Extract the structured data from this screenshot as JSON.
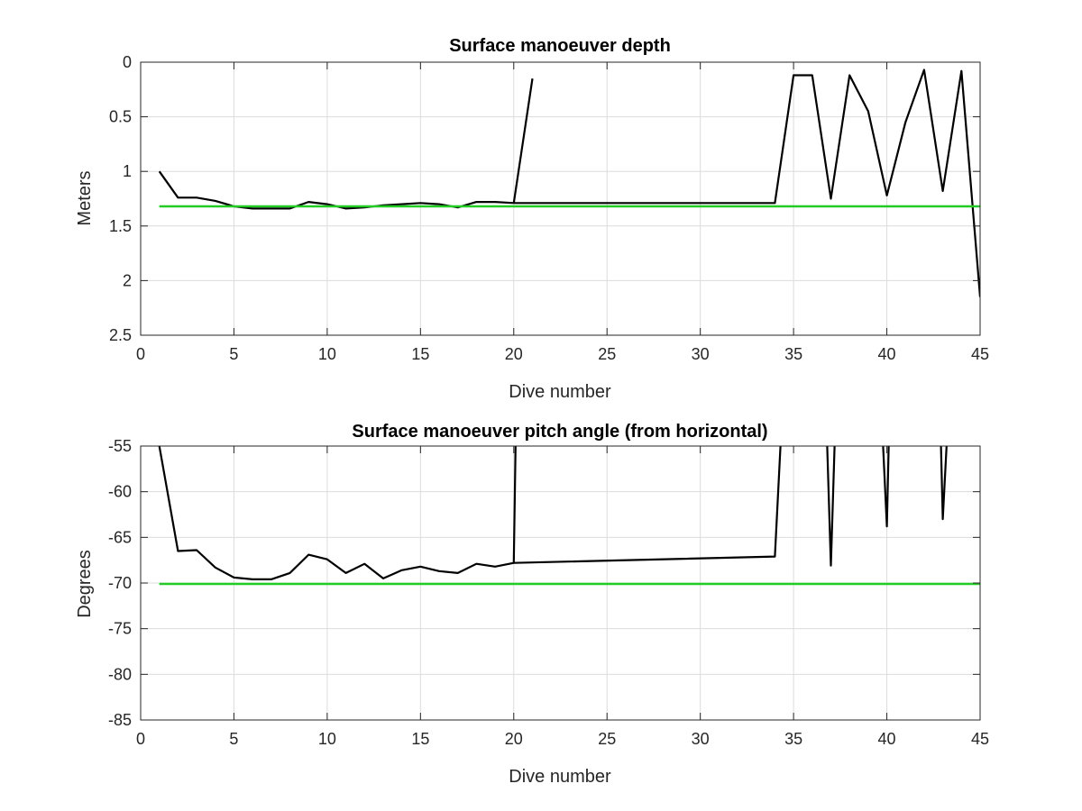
{
  "chart_data": [
    {
      "type": "line",
      "title": "Surface manoeuver depth",
      "xlabel": "Dive number",
      "ylabel": "Meters",
      "xlim": [
        0,
        45
      ],
      "ylim": [
        0,
        2.5
      ],
      "y_reversed": true,
      "grid": true,
      "xticks": [
        "0",
        "5",
        "10",
        "15",
        "20",
        "25",
        "30",
        "35",
        "40",
        "45"
      ],
      "yticks": [
        "0",
        "0.5",
        "1",
        "1.5",
        "2",
        "2.5"
      ],
      "series": [
        {
          "color": "#000000",
          "points": [
            [
              1,
              1.0
            ],
            [
              2,
              1.24
            ],
            [
              3,
              1.24
            ],
            [
              4,
              1.27
            ],
            [
              5,
              1.32
            ],
            [
              6,
              1.34
            ],
            [
              7,
              1.34
            ],
            [
              8,
              1.34
            ],
            [
              9,
              1.28
            ],
            [
              10,
              1.3
            ],
            [
              11,
              1.34
            ],
            [
              12,
              1.33
            ],
            [
              13,
              1.31
            ],
            [
              14,
              1.3
            ],
            [
              15,
              1.29
            ],
            [
              16,
              1.3
            ],
            [
              17,
              1.33
            ],
            [
              18,
              1.28
            ],
            [
              19,
              1.28
            ],
            [
              20,
              1.29
            ],
            [
              21,
              0.15
            ]
          ],
          "points_segment_2": [
            [
              20,
              1.29
            ],
            [
              34,
              1.29
            ],
            [
              35,
              0.12
            ],
            [
              36,
              0.12
            ],
            [
              37,
              1.25
            ],
            [
              38,
              0.12
            ],
            [
              39,
              0.45
            ],
            [
              40,
              1.22
            ],
            [
              41,
              0.55
            ],
            [
              42,
              0.07
            ],
            [
              43,
              1.18
            ],
            [
              44,
              0.08
            ],
            [
              45,
              2.15
            ]
          ]
        },
        {
          "color": "#22cc22",
          "points": [
            [
              1,
              1.32
            ],
            [
              45,
              1.32
            ]
          ]
        }
      ]
    },
    {
      "type": "line",
      "title": "Surface manoeuver pitch angle (from horizontal)",
      "xlabel": "Dive number",
      "ylabel": "Degrees",
      "xlim": [
        0,
        45
      ],
      "ylim": [
        -85,
        -55
      ],
      "grid": true,
      "xticks": [
        "0",
        "5",
        "10",
        "15",
        "20",
        "25",
        "30",
        "35",
        "40",
        "45"
      ],
      "yticks": [
        "-55",
        "-60",
        "-65",
        "-70",
        "-75",
        "-80",
        "-85"
      ],
      "series": [
        {
          "color": "#000000",
          "points": [
            [
              1,
              -55
            ],
            [
              2,
              -66.5
            ],
            [
              3,
              -66.4
            ],
            [
              4,
              -68.3
            ],
            [
              5,
              -69.4
            ],
            [
              6,
              -69.6
            ],
            [
              7,
              -69.6
            ],
            [
              8,
              -68.9
            ],
            [
              9,
              -66.9
            ],
            [
              10,
              -67.4
            ],
            [
              11,
              -68.9
            ],
            [
              12,
              -67.9
            ],
            [
              13,
              -69.5
            ],
            [
              14,
              -68.6
            ],
            [
              15,
              -68.2
            ],
            [
              16,
              -68.7
            ],
            [
              17,
              -68.9
            ],
            [
              18,
              -67.9
            ],
            [
              19,
              -68.2
            ],
            [
              20,
              -67.8
            ],
            [
              20.1,
              -55
            ]
          ],
          "points_segment_2": [
            [
              20,
              -67.8
            ],
            [
              34,
              -67.1
            ],
            [
              34.3,
              -55
            ]
          ],
          "points_segment_3": [
            [
              36.8,
              -55
            ],
            [
              37,
              -68.1
            ],
            [
              37.2,
              -55
            ]
          ],
          "points_segment_4": [
            [
              39.8,
              -55
            ],
            [
              40,
              -63.8
            ],
            [
              40.1,
              -55
            ]
          ],
          "points_segment_5": [
            [
              42.9,
              -55
            ],
            [
              43,
              -63
            ],
            [
              43.2,
              -55
            ]
          ]
        },
        {
          "color": "#22cc22",
          "points": [
            [
              1,
              -70.1
            ],
            [
              45,
              -70.1
            ]
          ]
        }
      ]
    }
  ]
}
